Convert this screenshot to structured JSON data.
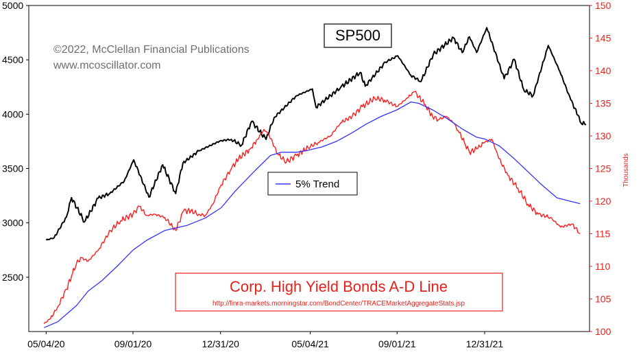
{
  "chart_data": {
    "type": "line",
    "title": "SP500",
    "copyright": [
      "©2022, McClellan Financial Publications",
      "www.mcoscillator.com"
    ],
    "legend": {
      "placement": "center",
      "entries": [
        "5% Trend"
      ]
    },
    "annotation": {
      "title": "Corp. High Yield Bonds A-D Line",
      "source": "http://finra-markets.morningstar.com/BondCenter/TRACEMarketAggregateStats.jsp"
    },
    "x_tick_labels": [
      "05/04/20",
      "09/01/20",
      "12/31/20",
      "05/04/21",
      "09/01/21",
      "12/31/21"
    ],
    "x_tick_dates": [
      "2020-05-04",
      "2020-09-01",
      "2020-12-31",
      "2021-05-04",
      "2021-09-01",
      "2021-12-31"
    ],
    "x_range": [
      "2020-04-10",
      "2022-05-25"
    ],
    "y_left": {
      "ylim": [
        2000,
        5000
      ],
      "ticks": [
        2500,
        3000,
        3500,
        4000,
        4500,
        5000
      ]
    },
    "y_right": {
      "label": "Thousands",
      "ylim": [
        100,
        150
      ],
      "ticks": [
        100,
        105,
        110,
        115,
        120,
        125,
        130,
        135,
        140,
        145,
        150
      ]
    },
    "grid": false,
    "series": [
      {
        "name": "SP500",
        "axis": "left",
        "color": "#000000",
        "points": [
          [
            "2020-05-04",
            2842
          ],
          [
            "2020-05-15",
            2863
          ],
          [
            "2020-06-01",
            3055
          ],
          [
            "2020-06-08",
            3232
          ],
          [
            "2020-06-26",
            3009
          ],
          [
            "2020-07-15",
            3227
          ],
          [
            "2020-07-31",
            3271
          ],
          [
            "2020-08-20",
            3385
          ],
          [
            "2020-09-02",
            3580
          ],
          [
            "2020-09-23",
            3237
          ],
          [
            "2020-10-12",
            3534
          ],
          [
            "2020-10-30",
            3270
          ],
          [
            "2020-11-09",
            3550
          ],
          [
            "2020-12-01",
            3662
          ],
          [
            "2020-12-31",
            3756
          ],
          [
            "2021-01-15",
            3768
          ],
          [
            "2021-01-29",
            3714
          ],
          [
            "2021-02-12",
            3934
          ],
          [
            "2021-03-04",
            3768
          ],
          [
            "2021-03-15",
            3968
          ],
          [
            "2021-04-15",
            4170
          ],
          [
            "2021-05-07",
            4232
          ],
          [
            "2021-05-12",
            4063
          ],
          [
            "2021-06-15",
            4246
          ],
          [
            "2021-07-12",
            4384
          ],
          [
            "2021-07-19",
            4258
          ],
          [
            "2021-08-16",
            4479
          ],
          [
            "2021-09-02",
            4537
          ],
          [
            "2021-09-20",
            4358
          ],
          [
            "2021-10-04",
            4300
          ],
          [
            "2021-10-21",
            4549
          ],
          [
            "2021-11-18",
            4704
          ],
          [
            "2021-11-30",
            4567
          ],
          [
            "2021-12-10",
            4712
          ],
          [
            "2021-12-20",
            4568
          ],
          [
            "2022-01-03",
            4796
          ],
          [
            "2022-01-27",
            4326
          ],
          [
            "2022-02-10",
            4504
          ],
          [
            "2022-02-23",
            4225
          ],
          [
            "2022-03-08",
            4171
          ],
          [
            "2022-03-29",
            4632
          ],
          [
            "2022-04-14",
            4393
          ],
          [
            "2022-04-29",
            4132
          ],
          [
            "2022-05-09",
            3991
          ],
          [
            "2022-05-12",
            3930
          ],
          [
            "2022-05-20",
            3901
          ]
        ]
      },
      {
        "name": "Corp. High Yield Bonds A-D Line",
        "axis": "right",
        "color": "#ff1a1a",
        "points": [
          [
            "2020-05-01",
            101.2
          ],
          [
            "2020-05-10",
            102.0
          ],
          [
            "2020-05-20",
            103.8
          ],
          [
            "2020-06-01",
            106.5
          ],
          [
            "2020-06-08",
            108.5
          ],
          [
            "2020-06-15",
            110.5
          ],
          [
            "2020-06-22",
            111.3
          ],
          [
            "2020-07-01",
            110.8
          ],
          [
            "2020-07-15",
            112.5
          ],
          [
            "2020-08-01",
            115.5
          ],
          [
            "2020-08-15",
            117.0
          ],
          [
            "2020-09-01",
            118.0
          ],
          [
            "2020-09-10",
            119.2
          ],
          [
            "2020-09-20",
            117.8
          ],
          [
            "2020-10-01",
            118.0
          ],
          [
            "2020-10-15",
            117.5
          ],
          [
            "2020-10-30",
            115.5
          ],
          [
            "2020-11-10",
            118.5
          ],
          [
            "2020-11-20",
            118.5
          ],
          [
            "2020-12-01",
            118.0
          ],
          [
            "2020-12-10",
            117.8
          ],
          [
            "2020-12-20",
            119.5
          ],
          [
            "2021-01-01",
            122.5
          ],
          [
            "2021-01-15",
            125.0
          ],
          [
            "2021-01-25",
            126.5
          ],
          [
            "2021-02-10",
            128.0
          ],
          [
            "2021-02-20",
            129.5
          ],
          [
            "2021-03-01",
            131.0
          ],
          [
            "2021-03-08",
            130.2
          ],
          [
            "2021-03-20",
            127.2
          ],
          [
            "2021-04-01",
            126.0
          ],
          [
            "2021-04-15",
            127.0
          ],
          [
            "2021-05-01",
            128.2
          ],
          [
            "2021-05-15",
            129.0
          ],
          [
            "2021-06-01",
            130.0
          ],
          [
            "2021-06-15",
            132.0
          ],
          [
            "2021-07-01",
            133.0
          ],
          [
            "2021-07-15",
            134.5
          ],
          [
            "2021-08-01",
            135.8
          ],
          [
            "2021-08-15",
            135.5
          ],
          [
            "2021-09-01",
            134.5
          ],
          [
            "2021-09-15",
            135.8
          ],
          [
            "2021-09-25",
            136.8
          ],
          [
            "2021-10-01",
            136.0
          ],
          [
            "2021-10-10",
            134.8
          ],
          [
            "2021-10-20",
            133.0
          ],
          [
            "2021-10-28",
            132.5
          ],
          [
            "2021-11-08",
            133.0
          ],
          [
            "2021-11-18",
            132.0
          ],
          [
            "2021-11-26",
            130.5
          ],
          [
            "2021-12-03",
            129.0
          ],
          [
            "2021-12-10",
            127.5
          ],
          [
            "2021-12-20",
            128.0
          ],
          [
            "2021-12-31",
            129.0
          ],
          [
            "2022-01-10",
            129.5
          ],
          [
            "2022-01-20",
            126.5
          ],
          [
            "2022-02-01",
            124.0
          ],
          [
            "2022-02-15",
            122.0
          ],
          [
            "2022-03-01",
            119.5
          ],
          [
            "2022-03-15",
            118.0
          ],
          [
            "2022-04-01",
            117.5
          ],
          [
            "2022-04-15",
            116.0
          ],
          [
            "2022-05-01",
            116.5
          ],
          [
            "2022-05-12",
            115.0
          ]
        ]
      },
      {
        "name": "5% Trend",
        "axis": "right",
        "color": "#3333ff",
        "points": [
          [
            "2020-05-01",
            100.6
          ],
          [
            "2020-05-20",
            101.5
          ],
          [
            "2020-06-15",
            104.0
          ],
          [
            "2020-07-01",
            106.2
          ],
          [
            "2020-07-20",
            107.8
          ],
          [
            "2020-08-10",
            110.0
          ],
          [
            "2020-09-01",
            112.5
          ],
          [
            "2020-09-20",
            114.0
          ],
          [
            "2020-10-15",
            115.5
          ],
          [
            "2020-11-15",
            116.3
          ],
          [
            "2020-12-10",
            117.4
          ],
          [
            "2021-01-01",
            119.0
          ],
          [
            "2021-01-20",
            121.5
          ],
          [
            "2021-02-15",
            124.5
          ],
          [
            "2021-03-10",
            127.0
          ],
          [
            "2021-03-25",
            127.5
          ],
          [
            "2021-04-15",
            127.5
          ],
          [
            "2021-05-01",
            127.8
          ],
          [
            "2021-05-20",
            128.3
          ],
          [
            "2021-06-10",
            129.2
          ],
          [
            "2021-07-01",
            130.5
          ],
          [
            "2021-07-20",
            131.8
          ],
          [
            "2021-08-10",
            133.0
          ],
          [
            "2021-09-01",
            134.0
          ],
          [
            "2021-09-20",
            135.2
          ],
          [
            "2021-10-01",
            135.0
          ],
          [
            "2021-10-20",
            134.0
          ],
          [
            "2021-11-10",
            132.6
          ],
          [
            "2021-12-01",
            131.0
          ],
          [
            "2021-12-20",
            129.8
          ],
          [
            "2022-01-01",
            129.5
          ],
          [
            "2022-01-20",
            128.5
          ],
          [
            "2022-02-10",
            126.5
          ],
          [
            "2022-03-01",
            124.5
          ],
          [
            "2022-03-20",
            122.5
          ],
          [
            "2022-04-10",
            120.5
          ],
          [
            "2022-05-12",
            119.6
          ]
        ]
      }
    ]
  }
}
